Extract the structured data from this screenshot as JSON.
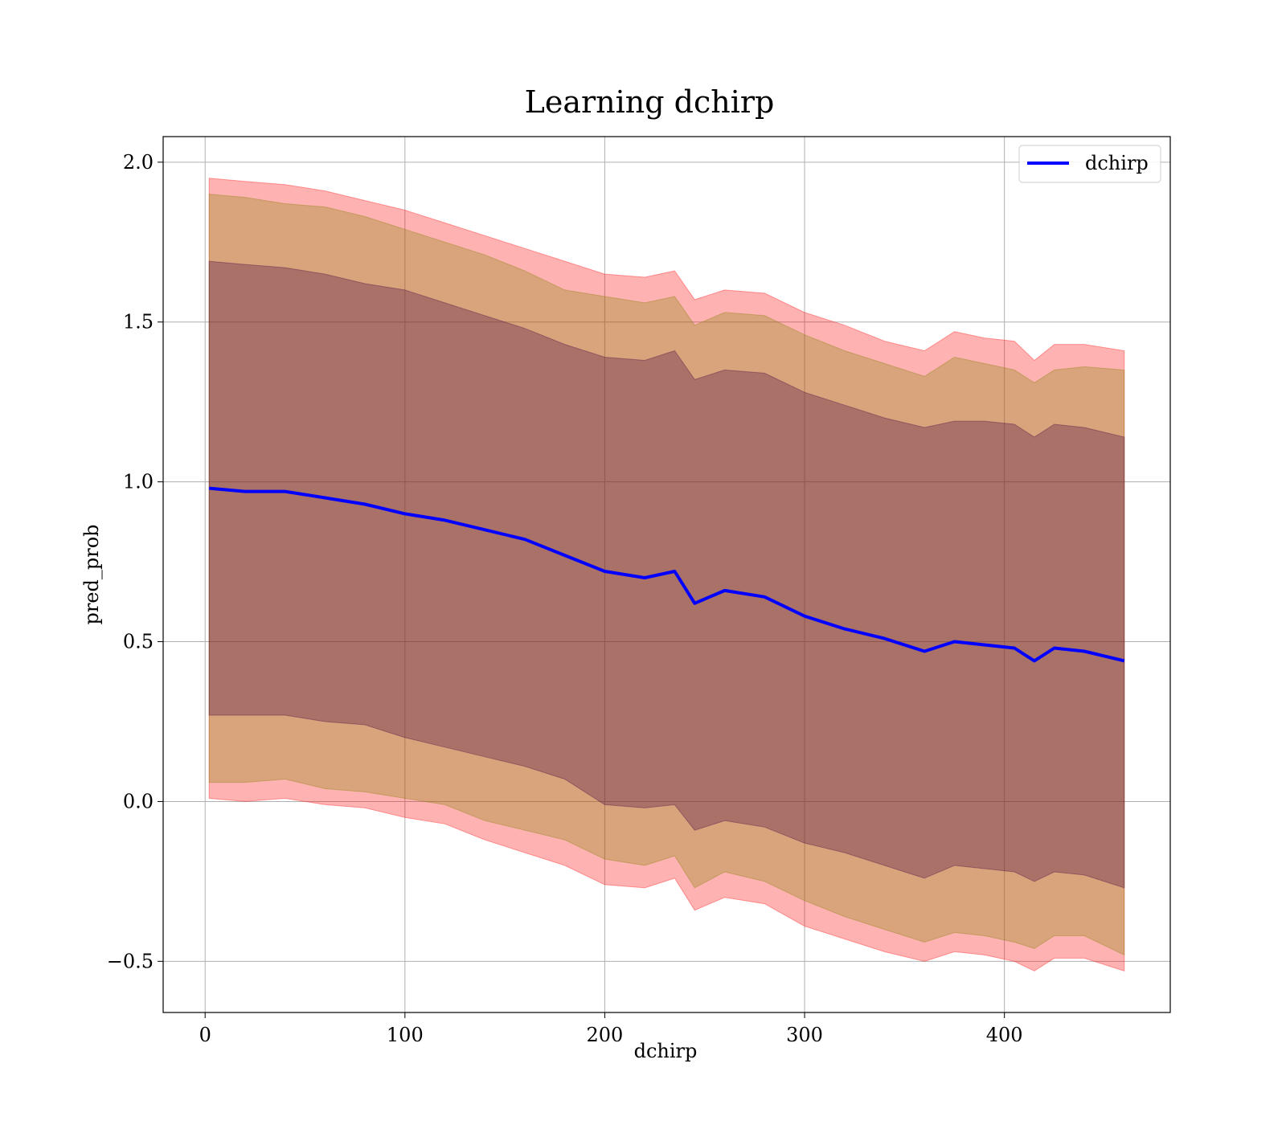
{
  "chart_data": {
    "type": "line",
    "title": "Learning dchirp",
    "xlabel": "dchirp",
    "ylabel": "pred_prob",
    "xlim": [
      -21,
      483
    ],
    "ylim": [
      -0.66,
      2.08
    ],
    "xticks": [
      0,
      100,
      200,
      300,
      400
    ],
    "xtick_labels": [
      "0",
      "100",
      "200",
      "300",
      "400"
    ],
    "yticks": [
      -0.5,
      0.0,
      0.5,
      1.0,
      1.5,
      2.0
    ],
    "ytick_labels": [
      "−0.5",
      "0.0",
      "0.5",
      "1.0",
      "1.5",
      "2.0"
    ],
    "grid": true,
    "legend": {
      "placement": "top-right",
      "entries": [
        "dchirp"
      ]
    },
    "x": [
      2,
      20,
      40,
      60,
      80,
      100,
      120,
      140,
      160,
      180,
      200,
      220,
      235,
      245,
      260,
      280,
      300,
      320,
      340,
      360,
      375,
      390,
      405,
      415,
      425,
      440,
      460
    ],
    "series": [
      {
        "name": "dchirp",
        "color": "#0000ff",
        "values": [
          0.98,
          0.97,
          0.97,
          0.95,
          0.93,
          0.9,
          0.88,
          0.85,
          0.82,
          0.77,
          0.72,
          0.7,
          0.72,
          0.62,
          0.66,
          0.64,
          0.58,
          0.54,
          0.51,
          0.47,
          0.5,
          0.49,
          0.48,
          0.44,
          0.48,
          0.47,
          0.44
        ]
      }
    ],
    "bands": [
      {
        "level": "outer",
        "color": "#ff0000",
        "opacity": 0.3,
        "upper": [
          1.95,
          1.94,
          1.93,
          1.91,
          1.88,
          1.85,
          1.81,
          1.77,
          1.73,
          1.69,
          1.65,
          1.64,
          1.66,
          1.57,
          1.6,
          1.59,
          1.53,
          1.49,
          1.44,
          1.41,
          1.47,
          1.45,
          1.44,
          1.38,
          1.43,
          1.43,
          1.41
        ],
        "lower": [
          0.01,
          0.0,
          0.01,
          -0.01,
          -0.02,
          -0.05,
          -0.07,
          -0.12,
          -0.16,
          -0.2,
          -0.26,
          -0.27,
          -0.24,
          -0.34,
          -0.3,
          -0.32,
          -0.39,
          -0.43,
          -0.47,
          -0.5,
          -0.47,
          -0.48,
          -0.5,
          -0.53,
          -0.49,
          -0.49,
          -0.53
        ]
      },
      {
        "level": "middle",
        "color": "#808000",
        "opacity": 0.3,
        "upper": [
          1.9,
          1.89,
          1.87,
          1.86,
          1.83,
          1.79,
          1.75,
          1.71,
          1.66,
          1.6,
          1.58,
          1.56,
          1.58,
          1.49,
          1.53,
          1.52,
          1.46,
          1.41,
          1.37,
          1.33,
          1.39,
          1.37,
          1.35,
          1.31,
          1.35,
          1.36,
          1.35
        ],
        "lower": [
          0.06,
          0.06,
          0.07,
          0.04,
          0.03,
          0.01,
          -0.01,
          -0.06,
          -0.09,
          -0.12,
          -0.18,
          -0.2,
          -0.17,
          -0.27,
          -0.22,
          -0.25,
          -0.31,
          -0.36,
          -0.4,
          -0.44,
          -0.41,
          -0.42,
          -0.44,
          -0.46,
          -0.42,
          -0.42,
          -0.48
        ]
      },
      {
        "level": "inner",
        "color": "#400040",
        "opacity": 0.3,
        "upper": [
          1.69,
          1.68,
          1.67,
          1.65,
          1.62,
          1.6,
          1.56,
          1.52,
          1.48,
          1.43,
          1.39,
          1.38,
          1.41,
          1.32,
          1.35,
          1.34,
          1.28,
          1.24,
          1.2,
          1.17,
          1.19,
          1.19,
          1.18,
          1.14,
          1.18,
          1.17,
          1.14
        ],
        "lower": [
          0.27,
          0.27,
          0.27,
          0.25,
          0.24,
          0.2,
          0.17,
          0.14,
          0.11,
          0.07,
          -0.01,
          -0.02,
          -0.01,
          -0.09,
          -0.06,
          -0.08,
          -0.13,
          -0.16,
          -0.2,
          -0.24,
          -0.2,
          -0.21,
          -0.22,
          -0.25,
          -0.22,
          -0.23,
          -0.27
        ]
      }
    ]
  }
}
